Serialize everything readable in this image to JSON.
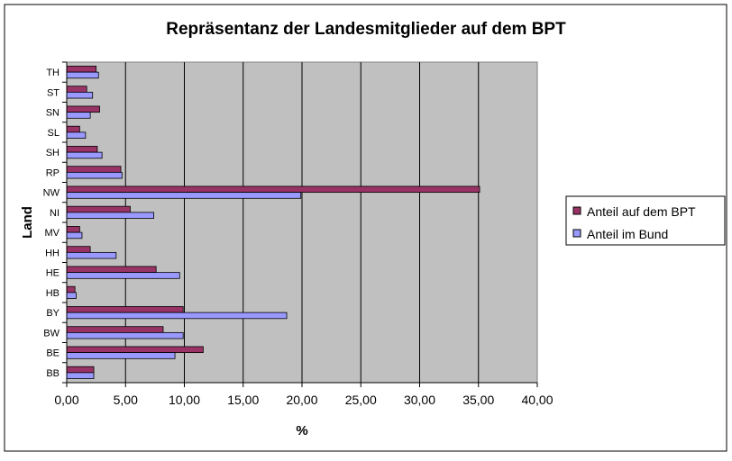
{
  "chart_data": {
    "type": "bar",
    "orientation": "horizontal",
    "title": "Repräsentanz der Landesmitglieder auf dem BPT",
    "xlabel": "%",
    "ylabel": "Land",
    "xlim": [
      0,
      40
    ],
    "x_ticks": [
      "0,00",
      "5,00",
      "10,00",
      "15,00",
      "20,00",
      "25,00",
      "30,00",
      "35,00",
      "40,00"
    ],
    "grid": "vertical",
    "legend_position": "right",
    "categories": [
      "BB",
      "BE",
      "BW",
      "BY",
      "HB",
      "HE",
      "HH",
      "MV",
      "NI",
      "NW",
      "RP",
      "SH",
      "SL",
      "SN",
      "ST",
      "TH"
    ],
    "series": [
      {
        "name": "Anteil auf dem BPT",
        "color": "#993366",
        "values": [
          2.3,
          11.6,
          8.2,
          9.9,
          0.7,
          7.6,
          2.0,
          1.1,
          5.4,
          35.1,
          4.6,
          2.6,
          1.1,
          2.8,
          1.7,
          2.5
        ]
      },
      {
        "name": "Anteil im Bund",
        "color": "#9999ff",
        "values": [
          2.3,
          9.2,
          9.9,
          18.7,
          0.8,
          9.6,
          4.2,
          1.3,
          7.4,
          19.9,
          4.7,
          3.0,
          1.6,
          2.0,
          2.2,
          2.7
        ]
      }
    ],
    "plot_background": "#c0c0c0"
  }
}
